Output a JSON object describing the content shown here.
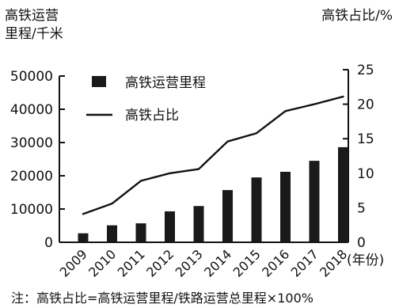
{
  "chart_data": {
    "type": "bar",
    "categories": [
      "2009",
      "2010",
      "2011",
      "2012",
      "2013",
      "2014",
      "2015",
      "2016",
      "2017",
      "2018"
    ],
    "series": [
      {
        "name": "高铁运营里程",
        "type": "bar",
        "axis": "left",
        "values": [
          2700,
          5100,
          5700,
          9300,
          10900,
          15700,
          19500,
          21200,
          24500,
          28600
        ],
        "color": "#1a1a1a"
      },
      {
        "name": "高铁占比",
        "type": "line",
        "axis": "right",
        "values": [
          4.1,
          5.6,
          8.9,
          10.0,
          10.6,
          14.6,
          15.8,
          19.0,
          20.0,
          21.1
        ],
        "color": "#111111"
      }
    ],
    "ylabel": "高铁运营里程/千米",
    "y2label": "高铁占比/%",
    "xlabel": "(年份)",
    "ylim": [
      0,
      50000
    ],
    "y2lim": [
      0,
      25
    ],
    "yticks": [
      0,
      10000,
      20000,
      30000,
      40000,
      50000
    ],
    "y2ticks": [
      0,
      5,
      10,
      15,
      20,
      25
    ],
    "legend_position": "top-left",
    "grid": false,
    "note": "注：高铁占比=高铁运营里程/铁路运营总里程×100%"
  }
}
